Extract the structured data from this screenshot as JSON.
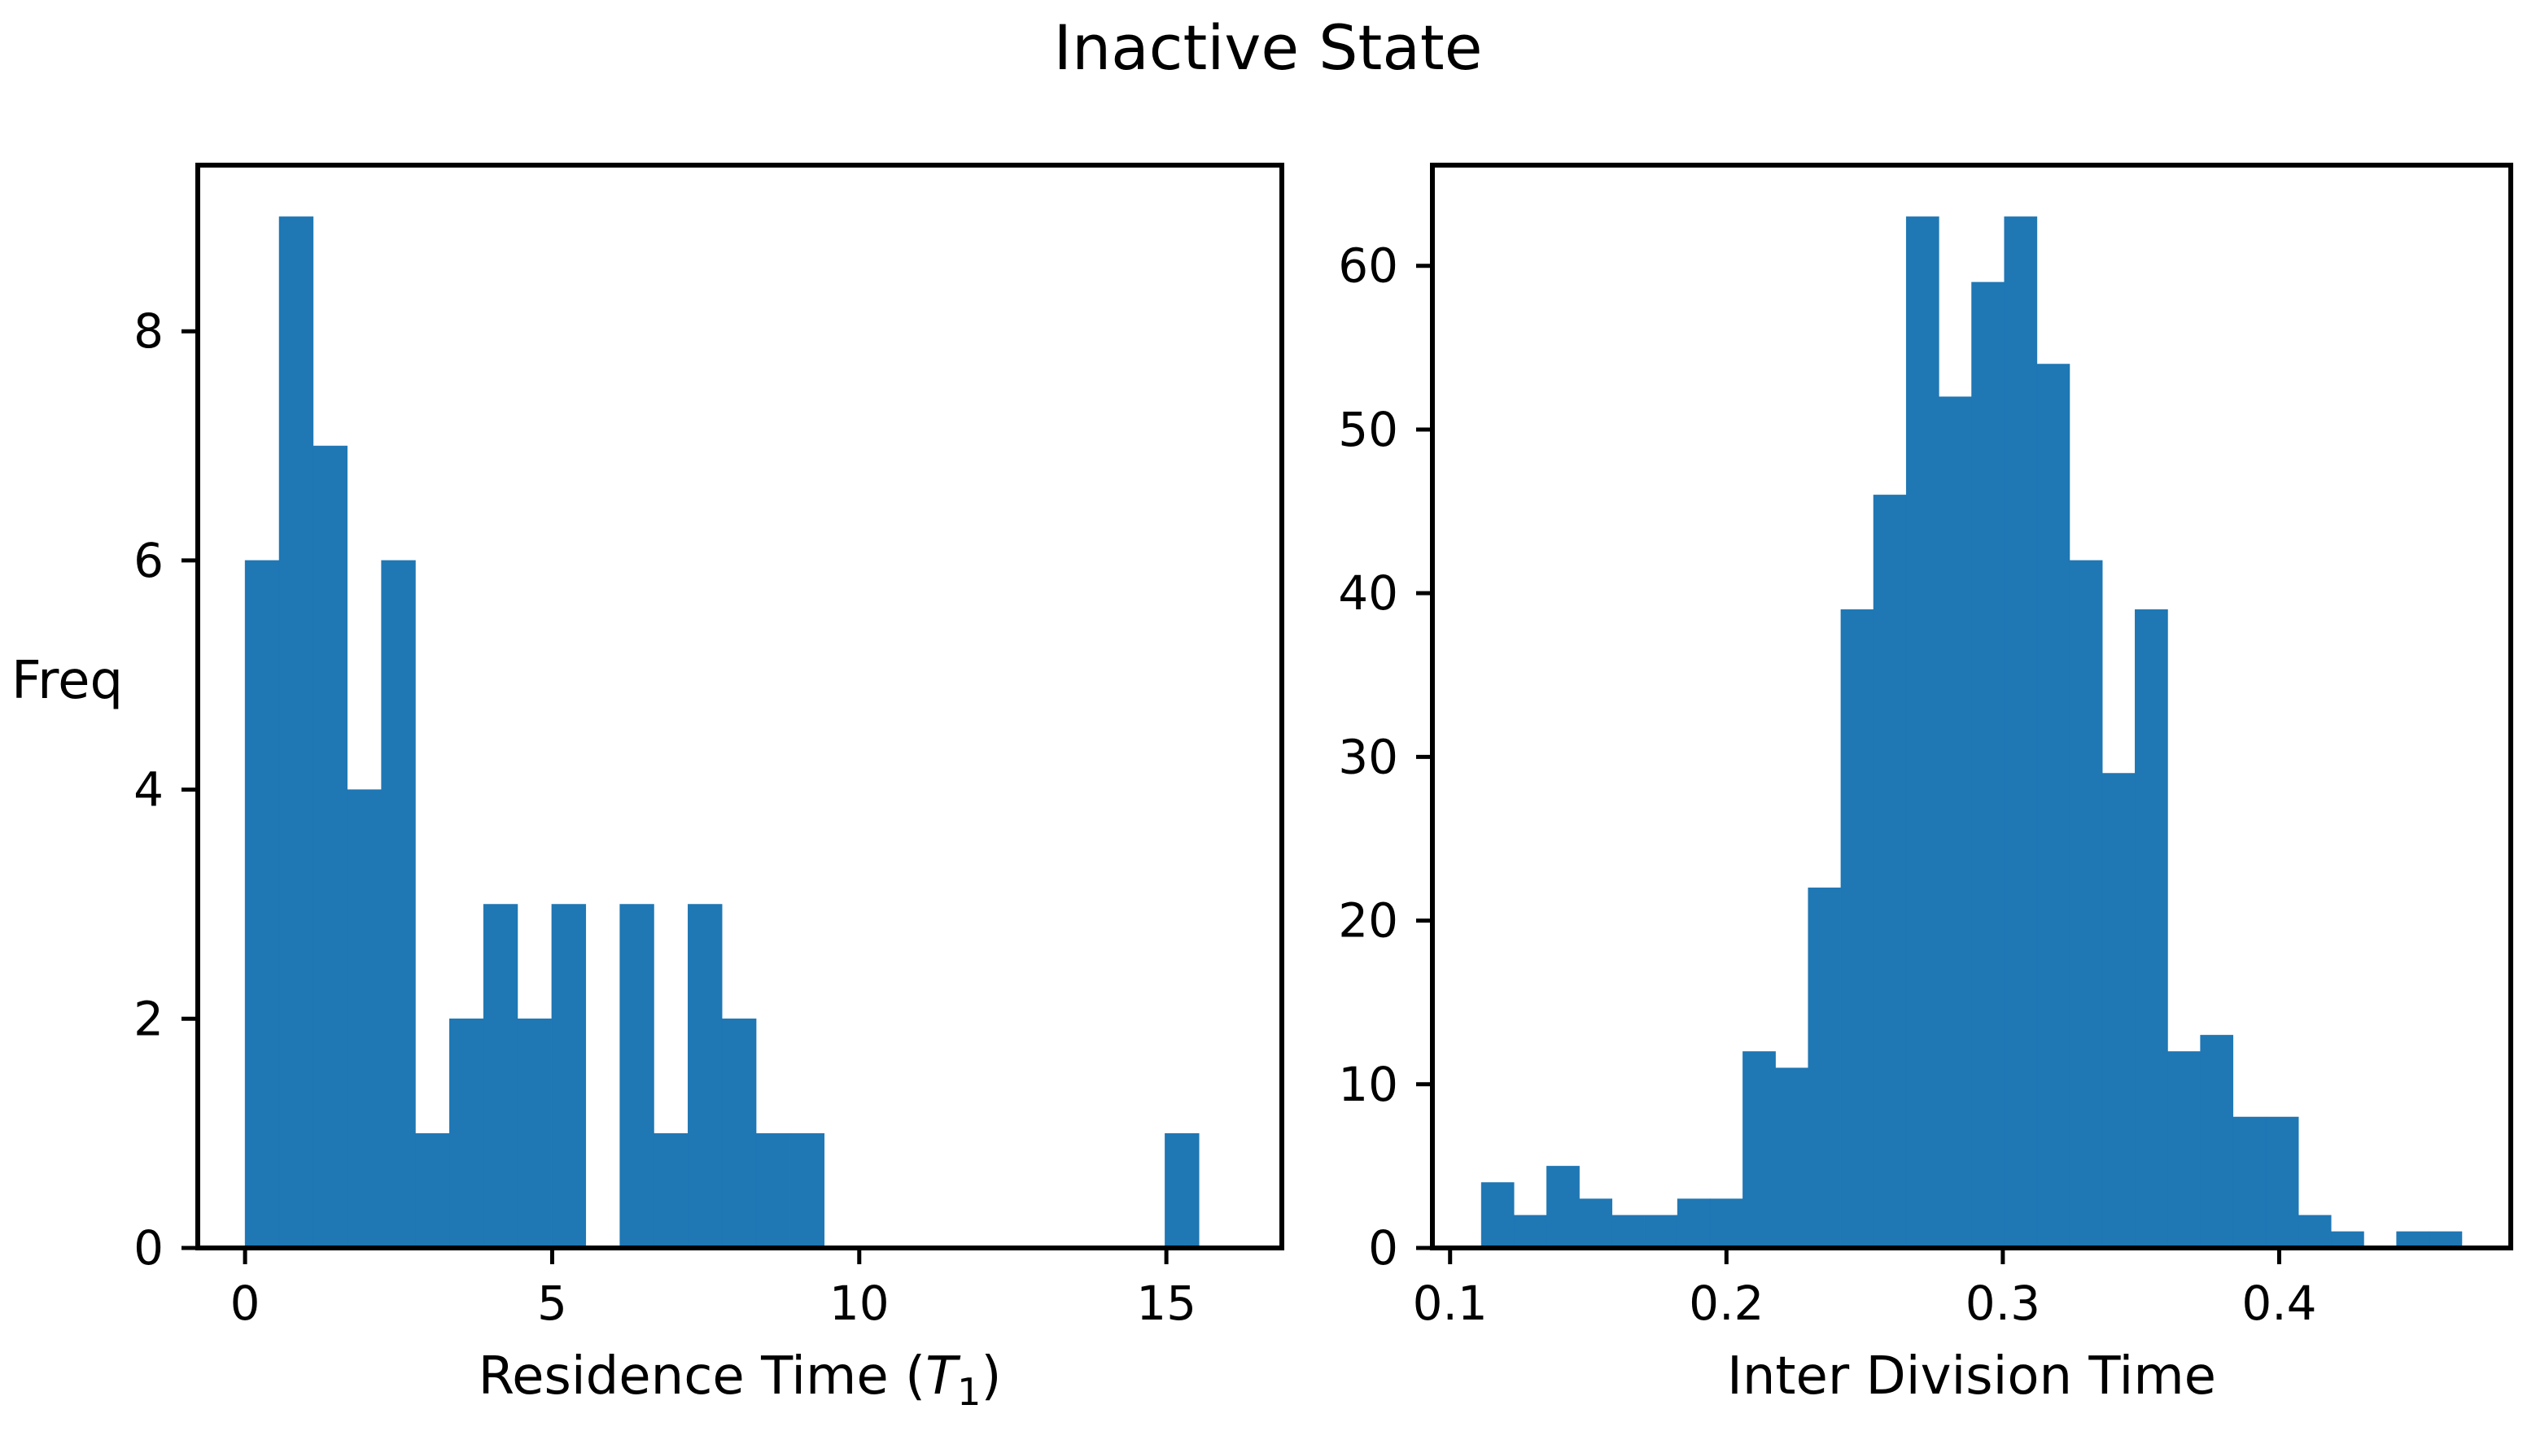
{
  "figure": {
    "title": "Inactive State",
    "background": "#ffffff",
    "bar_color": "#1f77b4",
    "axis_color": "#000000",
    "text_color": "#000000"
  },
  "labels": {
    "left_ylabel": "Freq",
    "left_xlabel_prefix": "Residence Time (",
    "left_xlabel_var": "T",
    "left_xlabel_sub": "1",
    "left_xlabel_suffix": ")",
    "right_xlabel": "Inter Division Time"
  },
  "chart_data": [
    {
      "type": "bar",
      "subtype": "histogram",
      "panel": "left",
      "title": "",
      "xlabel": "Residence Time (T_1)",
      "ylabel": "Freq",
      "bin_start": 0.0,
      "bin_width": 0.5547,
      "values": [
        6,
        9,
        7,
        4,
        6,
        1,
        2,
        3,
        2,
        3,
        0,
        3,
        1,
        3,
        2,
        1,
        1,
        0,
        0,
        0,
        0,
        0,
        0,
        0,
        0,
        0,
        0,
        1
      ],
      "xlim": [
        -0.77,
        16.88
      ],
      "ylim": [
        0,
        9.45
      ],
      "xticks": [
        0,
        5,
        10,
        15
      ],
      "xtick_labels": [
        "0",
        "5",
        "10",
        "15"
      ],
      "yticks": [
        0,
        2,
        4,
        6,
        8
      ],
      "ytick_labels": [
        "0",
        "2",
        "4",
        "6",
        "8"
      ],
      "grid": false,
      "legend": false
    },
    {
      "type": "bar",
      "subtype": "histogram",
      "panel": "right",
      "title": "",
      "xlabel": "Inter Division Time",
      "ylabel": "",
      "bin_start": 0.1113,
      "bin_width": 0.011827,
      "values": [
        4,
        2,
        5,
        3,
        2,
        2,
        3,
        3,
        12,
        11,
        22,
        39,
        46,
        63,
        52,
        59,
        63,
        54,
        42,
        29,
        39,
        12,
        13,
        8,
        8,
        2,
        1,
        0,
        1,
        1
      ],
      "xlim": [
        0.0936,
        0.4838
      ],
      "ylim": [
        0,
        66.15
      ],
      "xticks": [
        0.1,
        0.2,
        0.3,
        0.4
      ],
      "xtick_labels": [
        "0.1",
        "0.2",
        "0.3",
        "0.4"
      ],
      "yticks": [
        0,
        10,
        20,
        30,
        40,
        50,
        60
      ],
      "ytick_labels": [
        "0",
        "10",
        "20",
        "30",
        "40",
        "50",
        "60"
      ],
      "grid": false,
      "legend": false
    }
  ]
}
